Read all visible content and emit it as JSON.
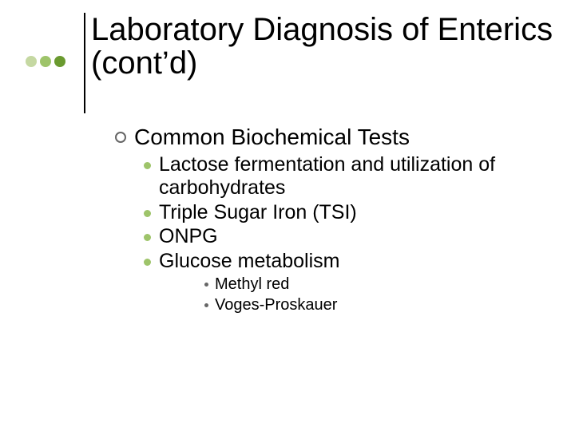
{
  "theme": {
    "background": "#ffffff",
    "text_color": "#000000",
    "font_family": "Comic Sans MS",
    "accent_colors": [
      "#c5d8a2",
      "#9ec46a",
      "#6a9a2f"
    ],
    "rule_color": "#000000",
    "bullet_ring_color": "#666666",
    "bullet_disc_color": "#9ec46a",
    "bullet_dot_color": "#666666"
  },
  "title": "Laboratory Diagnosis of Enterics (cont’d)",
  "title_fontsize": 40,
  "body_fontsizes": {
    "lvl1": 28,
    "lvl2": 25,
    "lvl3": 20
  },
  "content": {
    "lvl1": {
      "text": "Common Biochemical Tests",
      "lvl2": [
        {
          "text": "Lactose fermentation and utilization of carbohydrates"
        },
        {
          "text": "Triple Sugar Iron (TSI)"
        },
        {
          "text": "ONPG"
        },
        {
          "text": "Glucose metabolism",
          "lvl3": [
            {
              "text": "Methyl red"
            },
            {
              "text": "Voges-Proskauer"
            }
          ]
        }
      ]
    }
  }
}
